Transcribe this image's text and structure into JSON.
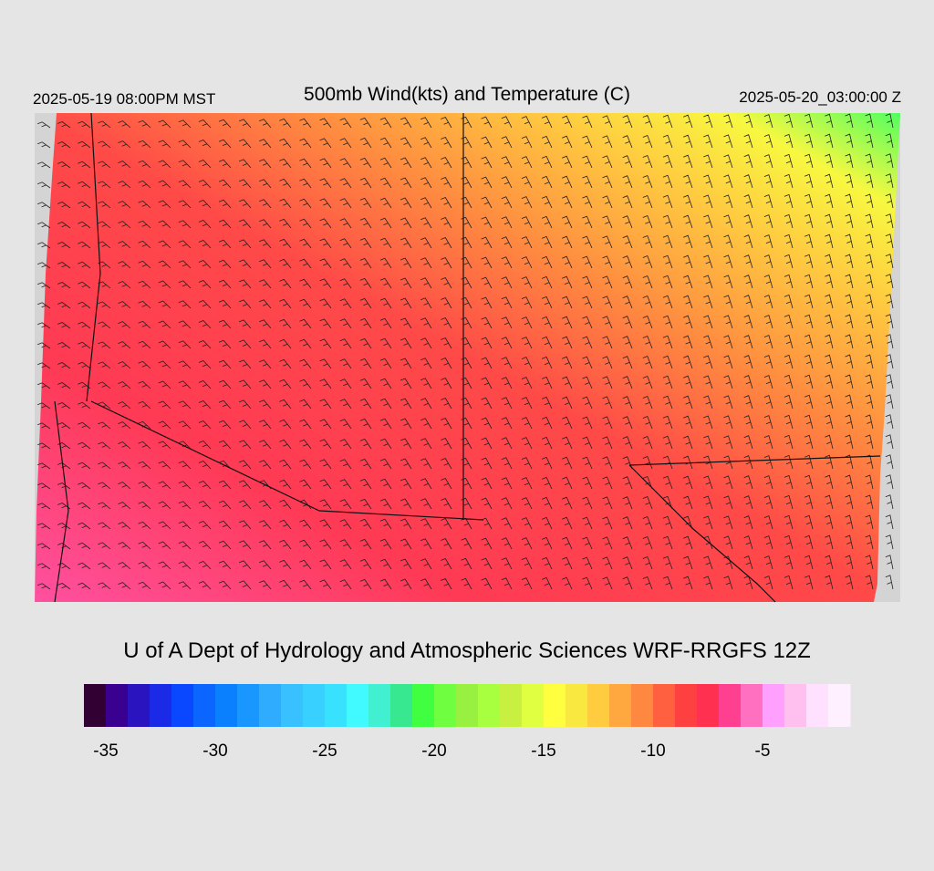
{
  "header": {
    "title": "500mb Wind(kts) and Temperature (C)",
    "local_time": "2025-05-19 08:00PM MST",
    "valid_time": "2025-05-20_03:00:00 Z"
  },
  "credit": "U of A Dept of Hydrology and Atmospheric Sciences WRF-RRGFS 12Z",
  "colorbar": {
    "range": [
      -36,
      -1
    ],
    "ticks": [
      -35,
      -30,
      -25,
      -20,
      -15,
      -10,
      -5
    ],
    "colors": [
      "#330033",
      "#3a0090",
      "#2a14c0",
      "#1a2ae6",
      "#0a48ff",
      "#0a66ff",
      "#0a80ff",
      "#1a96ff",
      "#30acff",
      "#38c0ff",
      "#38d0ff",
      "#38e2ff",
      "#40faff",
      "#40f0d0",
      "#38e890",
      "#40ff40",
      "#70ff40",
      "#98f040",
      "#a8ff40",
      "#c8f040",
      "#e0ff40",
      "#ffff40",
      "#f8e840",
      "#ffcc40",
      "#ffa840",
      "#ff8840",
      "#ff6040",
      "#ff4040",
      "#ff3050",
      "#ff4090",
      "#ff70c0",
      "#ffa0ff",
      "#ffc0f0",
      "#ffe0ff",
      "#fff0ff"
    ]
  }
}
